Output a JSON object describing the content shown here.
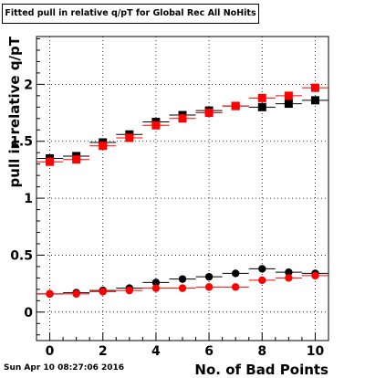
{
  "chart_data": {
    "type": "scatter",
    "title": "Fitted pull in relative q/pT for Global Rec All NoHits",
    "xlabel": "No. of Bad Points",
    "ylabel": "pull in relative q/pT",
    "xlim": [
      -0.5,
      10.5
    ],
    "ylim": [
      -0.25,
      2.42
    ],
    "xticks": [
      "0",
      "2",
      "4",
      "6",
      "8",
      "10"
    ],
    "yticks": [
      "0",
      "0.5",
      "1",
      "1.5",
      "2"
    ],
    "grid": true,
    "series": [
      {
        "marker": "square",
        "color": "#000000",
        "x": [
          0,
          1,
          2,
          3,
          4,
          5,
          6,
          7,
          8,
          9,
          10
        ],
        "y": [
          1.35,
          1.37,
          1.49,
          1.56,
          1.67,
          1.73,
          1.77,
          1.81,
          1.8,
          1.83,
          1.86
        ]
      },
      {
        "marker": "square",
        "color": "#ff0000",
        "x": [
          0,
          1,
          2,
          3,
          4,
          5,
          6,
          7,
          8,
          9,
          10
        ],
        "y": [
          1.32,
          1.34,
          1.46,
          1.53,
          1.64,
          1.7,
          1.75,
          1.81,
          1.88,
          1.9,
          1.97
        ]
      },
      {
        "marker": "circle",
        "color": "#000000",
        "x": [
          0,
          1,
          2,
          3,
          4,
          5,
          6,
          7,
          8,
          9,
          10
        ],
        "y": [
          0.16,
          0.17,
          0.19,
          0.21,
          0.26,
          0.29,
          0.31,
          0.34,
          0.38,
          0.35,
          0.34
        ]
      },
      {
        "marker": "circle",
        "color": "#ff0000",
        "x": [
          0,
          1,
          2,
          3,
          4,
          5,
          6,
          7,
          8,
          9,
          10
        ],
        "y": [
          0.16,
          0.16,
          0.18,
          0.19,
          0.21,
          0.21,
          0.22,
          0.22,
          0.28,
          0.3,
          0.32
        ]
      }
    ]
  },
  "datestamp": "Sun Apr 10 08:27:06 2016"
}
